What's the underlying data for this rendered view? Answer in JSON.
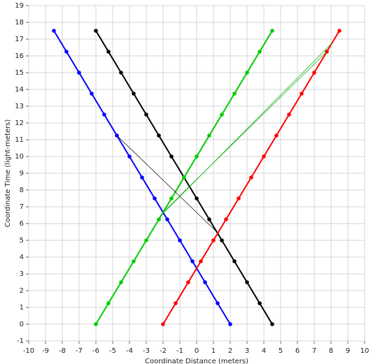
{
  "chart_data": {
    "type": "line",
    "x_label": "Coordinate Distance (meters)",
    "y_label": "Coordinate Time (light-meters)",
    "xlim": [
      -10,
      10
    ],
    "ylim": [
      -1,
      19
    ],
    "xticks": [
      -10,
      -9,
      -8,
      -7,
      -6,
      -5,
      -4,
      -3,
      -2,
      -1,
      0,
      1,
      2,
      3,
      4,
      5,
      6,
      7,
      8,
      9,
      10
    ],
    "yticks": [
      -1,
      0,
      1,
      2,
      3,
      4,
      5,
      6,
      7,
      8,
      9,
      10,
      11,
      12,
      13,
      14,
      15,
      16,
      17,
      18,
      19
    ],
    "grid": true,
    "series": [
      {
        "color": "#0000ff",
        "width": 2,
        "markers": true,
        "x": [
          -8.5,
          -7.75,
          -7,
          -6.25,
          -5.5,
          -4.75,
          -4,
          -3.25,
          -2.5,
          -1.75,
          -1,
          -0.25,
          0.5,
          1.25,
          2
        ],
        "values": [
          17.5,
          16.25,
          15,
          13.75,
          12.5,
          11.25,
          10,
          8.75,
          7.5,
          6.25,
          5,
          3.75,
          2.5,
          1.25,
          0
        ]
      },
      {
        "color": "#000000",
        "width": 2,
        "markers": true,
        "x": [
          -6,
          -5.25,
          -4.5,
          -3.75,
          -3,
          -2.25,
          -1.5,
          -0.75,
          0,
          0.75,
          1.5,
          2.25,
          3,
          3.75,
          4.5
        ],
        "values": [
          17.5,
          16.25,
          15,
          13.75,
          12.5,
          11.25,
          10,
          8.75,
          7.5,
          6.25,
          5,
          3.75,
          2.5,
          1.25,
          0
        ]
      },
      {
        "color": "#00cc00",
        "width": 2,
        "markers": true,
        "x": [
          -6,
          -5.25,
          -4.5,
          -3.75,
          -3,
          -2.25,
          -1.5,
          -0.75,
          0,
          0.75,
          1.5,
          2.25,
          3,
          3.75,
          4.5
        ],
        "values": [
          0,
          1.25,
          2.5,
          3.75,
          5,
          6.25,
          7.5,
          8.75,
          10,
          11.25,
          12.5,
          13.75,
          15,
          16.25,
          17.5
        ]
      },
      {
        "color": "#ff0000",
        "width": 2,
        "markers": true,
        "x": [
          -2,
          -1.25,
          -0.5,
          0.25,
          1,
          1.75,
          2.5,
          3.25,
          4,
          4.75,
          5.5,
          6.25,
          7,
          7.75,
          8.5
        ],
        "values": [
          0,
          1.25,
          2.5,
          3.75,
          5,
          6.25,
          7.5,
          8.75,
          10,
          11.25,
          12.5,
          13.75,
          15,
          16.25,
          17.5
        ]
      },
      {
        "color": "#000000",
        "width": 0.7,
        "markers": false,
        "x": [
          -4.75,
          1.2
        ],
        "values": [
          11.25,
          5.5
        ]
      },
      {
        "color": "#00aa00",
        "width": 0.7,
        "markers": false,
        "x": [
          -2,
          7.75
        ],
        "values": [
          6.67,
          16.25
        ]
      },
      {
        "color": "#00aa00",
        "width": 0.7,
        "markers": false,
        "x": [
          -2.2,
          8.1
        ],
        "values": [
          6.4,
          16.8
        ]
      }
    ]
  }
}
